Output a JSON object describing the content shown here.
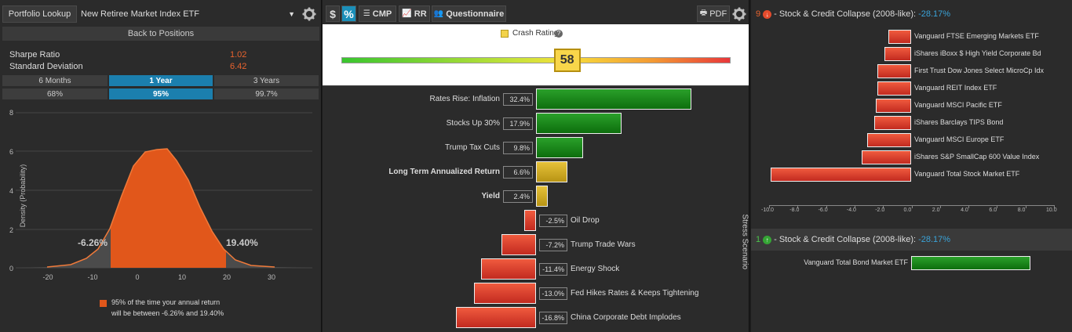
{
  "left": {
    "lookup_button": "Portfolio Lookup",
    "portfolio_name": "New Retiree Market Index ETF",
    "back_button": "Back to Positions",
    "sharpe_label": "Sharpe Ratio",
    "sharpe_value": "1.02",
    "stddev_label": "Standard Deviation",
    "stddev_value": "6.42",
    "periods": [
      "6 Months",
      "1 Year",
      "3 Years"
    ],
    "selected_period": "1 Year",
    "confidences": [
      "68%",
      "95%",
      "99.7%"
    ],
    "selected_confidence": "95%",
    "chart_ylabel": "Density (Probability)",
    "yticks": [
      "8",
      "6",
      "4",
      "2",
      "0"
    ],
    "xticks": [
      "-20",
      "-10",
      "0",
      "10",
      "20",
      "30"
    ],
    "low_label": "-6.26%",
    "high_label": "19.40%",
    "legend_line1": "95% of the time your annual return",
    "legend_line2": "will be between -6.26% and 19.40%",
    "fill_color": "#e1571b"
  },
  "mid": {
    "toolbar": {
      "dollar": "$",
      "percent": "%",
      "cmp": "CMP",
      "rr": "RR",
      "questionnaire": "Questionnaire",
      "pdf": "PDF"
    },
    "crash_label": "Crash Rating",
    "crash_value": "58",
    "crash_fraction": 0.58,
    "side_label": "Stress Scenario",
    "rows": [
      {
        "label": "Rates Rise: Inflation",
        "value": "32.4%",
        "num": 32.4,
        "kind": "g",
        "bold": false
      },
      {
        "label": "Stocks Up 30%",
        "value": "17.9%",
        "num": 17.9,
        "kind": "g",
        "bold": false
      },
      {
        "label": "Trump Tax Cuts",
        "value": "9.8%",
        "num": 9.8,
        "kind": "g",
        "bold": false
      },
      {
        "label": "Long Term Annualized Return",
        "value": "6.6%",
        "num": 6.6,
        "kind": "y",
        "bold": true
      },
      {
        "label": "Yield",
        "value": "2.4%",
        "num": 2.4,
        "kind": "y",
        "bold": true
      },
      {
        "label": "Oil Drop",
        "value": "-2.5%",
        "num": -2.5,
        "kind": "r",
        "bold": false
      },
      {
        "label": "Trump Trade Wars",
        "value": "-7.2%",
        "num": -7.2,
        "kind": "r",
        "bold": false
      },
      {
        "label": "Energy Shock",
        "value": "-11.4%",
        "num": -11.4,
        "kind": "r",
        "bold": false
      },
      {
        "label": "Fed Hikes Rates & Keeps Tightening",
        "value": "-13.0%",
        "num": -13.0,
        "kind": "r",
        "bold": false
      },
      {
        "label": "China Corporate Debt Implodes",
        "value": "-16.8%",
        "num": -16.8,
        "kind": "r",
        "bold": false
      }
    ]
  },
  "right": {
    "section1": {
      "count": "9",
      "title": "- Stock & Credit Collapse (2008-like):",
      "value": "-28.17%"
    },
    "section2": {
      "count": "1",
      "title": "- Stock & Credit Collapse (2008-like):",
      "value": "-28.17%"
    },
    "axis_ticks": [
      "-10.0",
      "-8.0",
      "-6.0",
      "-4.0",
      "-2.0",
      "0.0",
      "2.0",
      "4.0",
      "6.0",
      "8.0",
      "10.0"
    ],
    "losers": [
      {
        "name": "Vanguard FTSE Emerging Markets ETF",
        "value": -1.6
      },
      {
        "name": "iShares iBoxx $ High Yield Corporate Bd",
        "value": -1.9
      },
      {
        "name": "First Trust Dow Jones Select MicroCp Idx",
        "value": -2.4
      },
      {
        "name": "Vanguard REIT Index ETF",
        "value": -2.4
      },
      {
        "name": "Vanguard MSCI Pacific ETF",
        "value": -2.5
      },
      {
        "name": "iShares Barclays TIPS Bond",
        "value": -2.6
      },
      {
        "name": "Vanguard MSCI Europe ETF",
        "value": -3.1
      },
      {
        "name": "iShares S&P SmallCap 600 Value Index",
        "value": -3.5
      },
      {
        "name": "Vanguard Total Stock Market ETF",
        "value": -9.9
      }
    ],
    "gainers": [
      {
        "name": "Vanguard Total Bond Market ETF",
        "value": 8.4
      }
    ]
  }
}
